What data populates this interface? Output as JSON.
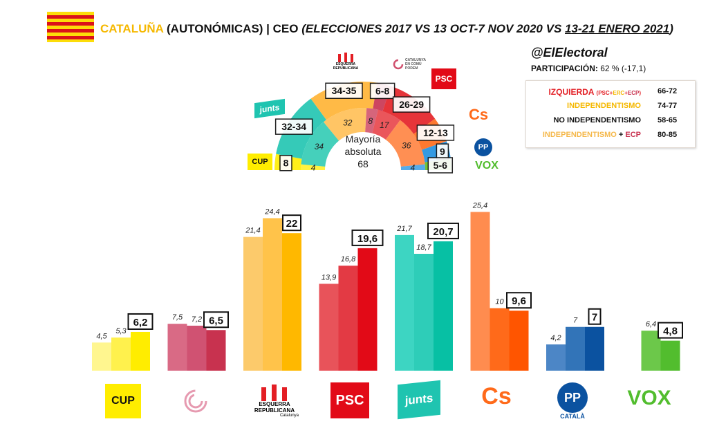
{
  "header": {
    "region": "CATALUÑA",
    "subtitle": " (AUTONÓMICAS) | CEO ",
    "detail": "(ELECCIONES 2017 VS 13 OCT-7 NOV 2020 VS ",
    "latest_dates": "13-21 ENERO 2021",
    "close": ")"
  },
  "sidebar": {
    "handle": "@ElElectoral",
    "participation_label": "PARTICIPACIÓN:",
    "participation_value": "62 % (-17,1)"
  },
  "legend": {
    "rows": [
      {
        "label": "IZQUIERDA",
        "value": "66-72",
        "color": "#e31e24"
      },
      {
        "label": "INDEPENDENTISMO",
        "value": "74-77",
        "color": "#f5b800"
      },
      {
        "label": "NO INDEPENDENTISMO",
        "value": "58-65",
        "color": "#111111"
      },
      {
        "label": "INDEPENDENTISMO + ECP",
        "value": "80-85",
        "color": "#f5b84a"
      }
    ],
    "izquierda_note": {
      "open": "(",
      "psc": "PSC",
      "plus1": "+",
      "erc": "ERC",
      "plus2": "+",
      "ecp": "ECP",
      "close": ")"
    },
    "ind_ecp_parts": {
      "ind": "INDEPENDENTISMO",
      "plus": " + ",
      "ecp": "ECP"
    }
  },
  "hemicycle": {
    "majority_label": "Mayoría",
    "majority_label2": "absoluta",
    "majority_value": "68",
    "outer": [
      {
        "party": "CUP",
        "range": "8",
        "color": "#ffed00"
      },
      {
        "party": "JxCat",
        "range": "32-34",
        "color": "#1fc4b0"
      },
      {
        "party": "ERC",
        "range": "34-35",
        "color": "#ffb232"
      },
      {
        "party": "ECP",
        "range": "6-8",
        "color": "#c8324f"
      },
      {
        "party": "PSC",
        "range": "26-29",
        "color": "#e31e24"
      },
      {
        "party": "Cs",
        "range": "12-13",
        "color": "#ff6a1a"
      },
      {
        "party": "PP",
        "range": "9",
        "color": "#1e8fe0"
      },
      {
        "party": "VOX",
        "range": "5-6",
        "color": "#63be21"
      }
    ],
    "inner": [
      {
        "party": "CUP",
        "seats": "4"
      },
      {
        "party": "JxCat",
        "seats": "34"
      },
      {
        "party": "ERC",
        "seats": "32"
      },
      {
        "party": "ECP",
        "seats": "8"
      },
      {
        "party": "PSC",
        "seats": "17"
      },
      {
        "party": "Cs",
        "seats": "36"
      },
      {
        "party": "PP",
        "seats": "4"
      }
    ]
  },
  "logos": {
    "cup": "CUP",
    "erc_line1": "ESQUERRA",
    "erc_line2": "REPUBLICANA",
    "erc_line3": "Catalunya",
    "ecp_line1": "CATALUNYA",
    "ecp_line2": "EN COMÚ",
    "ecp_line3": "PODEM",
    "psc": "PSC",
    "junts": "junts",
    "cs": "Cs",
    "pp": "PP",
    "pp_sub": "CATALÀ",
    "vox": "VOX"
  },
  "chart_data": {
    "type": "bar",
    "title": "CATALUÑA (AUTONÓMICAS) | CEO (ELECCIONES 2017 VS 13 OCT-7 NOV 2020 VS 13-21 ENERO 2021)",
    "series": [
      {
        "name": "Elecciones 2017",
        "values": [
          4.5,
          7.5,
          21.4,
          13.9,
          21.7,
          25.4,
          4.2,
          null
        ]
      },
      {
        "name": "13 oct-7 nov 2020",
        "values": [
          5.3,
          7.2,
          24.4,
          16.8,
          18.7,
          10,
          7,
          6.4
        ]
      },
      {
        "name": "13-21 enero 2021",
        "values": [
          6.2,
          6.5,
          22,
          19.6,
          20.7,
          9.6,
          7,
          4.8
        ]
      }
    ],
    "categories": [
      "CUP",
      "ECP",
      "ERC",
      "PSC",
      "JxCat",
      "Cs",
      "PP",
      "VOX"
    ],
    "labels": [
      [
        "4,5",
        "5,3",
        "6,2"
      ],
      [
        "7,5",
        "7,2",
        "6,5"
      ],
      [
        "21,4",
        "24,4",
        "22"
      ],
      [
        "13,9",
        "16,8",
        "19,6"
      ],
      [
        "21,7",
        "18,7",
        "20,7"
      ],
      [
        "25,4",
        "10",
        "9,6"
      ],
      [
        "4,2",
        "7",
        "7"
      ],
      [
        "",
        "6,4",
        "4,8"
      ]
    ],
    "colors": [
      [
        "#fff68f",
        "#fff14d",
        "#ffed00"
      ],
      [
        "#d96a85",
        "#d05272",
        "#c8324f"
      ],
      [
        "#fcca6b",
        "#ffc34a",
        "#ffb800"
      ],
      [
        "#e8535a",
        "#e33a44",
        "#e20a17"
      ],
      [
        "#3dd5c2",
        "#2ecdb8",
        "#07c0a4"
      ],
      [
        "#ff8c4f",
        "#ff6a1a",
        "#ff5500"
      ],
      [
        "#4c86c6",
        "#3274b8",
        "#0b52a0"
      ],
      [
        "#7ecf5c",
        "#6cc84a",
        "#52bd2e"
      ]
    ],
    "ylim": [
      0,
      27
    ],
    "xlabel": "",
    "ylabel": ""
  }
}
